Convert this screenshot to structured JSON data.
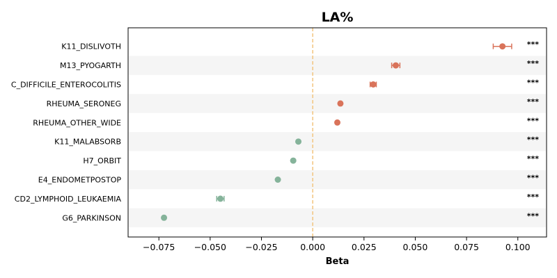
{
  "chart_data": {
    "type": "scatter",
    "title": "LA%",
    "xlabel": "Beta",
    "xlim": [
      -0.09,
      0.114
    ],
    "x_ticks": [
      -0.075,
      -0.05,
      -0.025,
      0.0,
      0.025,
      0.05,
      0.075,
      0.1
    ],
    "x_tick_labels": [
      "−0.075",
      "−0.050",
      "−0.025",
      "0.000",
      "0.025",
      "0.050",
      "0.075",
      "0.100"
    ],
    "reference_line": 0,
    "categories": [
      "K11_DISLIVOTH",
      "M13_PYOGARTH",
      "C_DIFFICILE_ENTEROCOLITIS",
      "RHEUMA_SERONEG",
      "RHEUMA_OTHER_WIDE",
      "K11_MALABSORB",
      "H7_ORBIT",
      "E4_ENDOMETPOSTOP",
      "CD2_LYMPHOID_LEUKAEMIA",
      "G6_PARKINSON"
    ],
    "values": [
      0.0925,
      0.0405,
      0.0295,
      0.0135,
      0.012,
      -0.007,
      -0.0095,
      -0.017,
      -0.045,
      -0.0725
    ],
    "error": [
      0.0045,
      0.002,
      0.0015,
      0.0005,
      0.0004,
      0.0004,
      0.0005,
      0.0005,
      0.0018,
      0.0005
    ],
    "significance": [
      "***",
      "***",
      "***",
      "***",
      "***",
      "***",
      "***",
      "***",
      "***",
      "***"
    ],
    "colors": {
      "positive": "#d9735a",
      "negative": "#85b39a",
      "reference": "#f2c47e",
      "band": "#f5f5f5"
    }
  }
}
